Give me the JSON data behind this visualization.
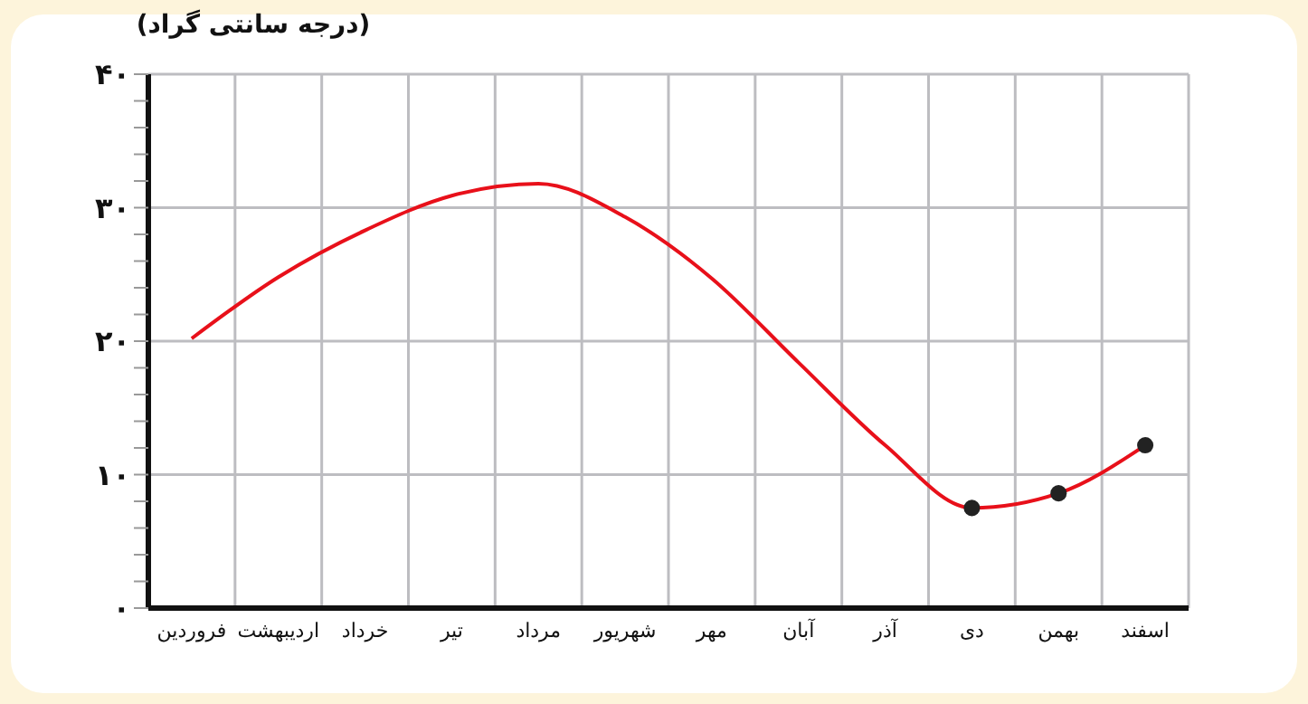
{
  "chart_data": {
    "type": "line",
    "ylabel": "(درجه سانتی گراد)",
    "categories": [
      "فروردین",
      "اردیبهشت",
      "خرداد",
      "تیر",
      "مرداد",
      "شهریور",
      "مهر",
      "آبان",
      "آذر",
      "دی",
      "بهمن",
      "اسفند"
    ],
    "ylim": [
      0,
      40
    ],
    "yticks": [
      {
        "value": 0,
        "label": "۰"
      },
      {
        "value": 2,
        "label": null
      },
      {
        "value": 4,
        "label": null
      },
      {
        "value": 6,
        "label": null
      },
      {
        "value": 8,
        "label": null
      },
      {
        "value": 10,
        "label": "۱۰"
      },
      {
        "value": 12,
        "label": null
      },
      {
        "value": 14,
        "label": null
      },
      {
        "value": 16,
        "label": null
      },
      {
        "value": 18,
        "label": null
      },
      {
        "value": 20,
        "label": "۲۰"
      },
      {
        "value": 22,
        "label": null
      },
      {
        "value": 24,
        "label": null
      },
      {
        "value": 26,
        "label": null
      },
      {
        "value": 28,
        "label": null
      },
      {
        "value": 30,
        "label": "۳۰"
      },
      {
        "value": 32,
        "label": null
      },
      {
        "value": 34,
        "label": null
      },
      {
        "value": 36,
        "label": null
      },
      {
        "value": 38,
        "label": null
      },
      {
        "value": 40,
        "label": "۴۰"
      }
    ],
    "grid": true,
    "series": [
      {
        "color": "#e8101a",
        "marker": "none",
        "line_style": "solid",
        "values": [
          20.2,
          24.8,
          28.3,
          30.9,
          31.8,
          29.3,
          24.7,
          18.4,
          12.2,
          7.5,
          8.6,
          12.2
        ]
      },
      {
        "type": "scatter",
        "color": "#222222",
        "marker": "circle",
        "x": [
          "دی",
          "بهمن",
          "اسفند"
        ],
        "values": [
          7.5,
          8.6,
          12.2
        ]
      }
    ]
  }
}
